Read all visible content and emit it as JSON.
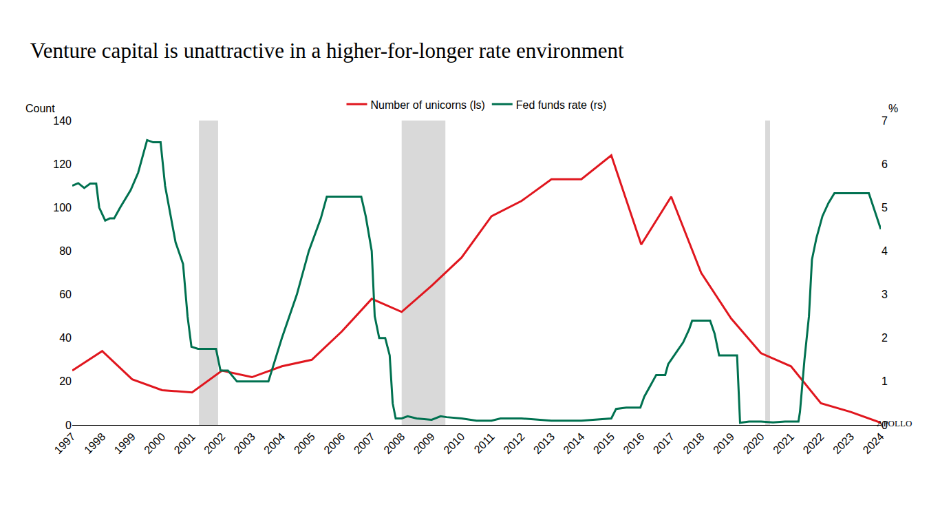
{
  "chart_data": {
    "type": "line",
    "title": "Venture capital is unattractive in a higher-for-longer rate environment",
    "logo": "APOLLO",
    "y_label": "Count",
    "y2_label": "%",
    "xlim": [
      1997,
      2024
    ],
    "xticks": [
      1997,
      1998,
      1999,
      2000,
      2001,
      2002,
      2003,
      2004,
      2005,
      2006,
      2007,
      2008,
      2009,
      2010,
      2011,
      2012,
      2013,
      2014,
      2015,
      2016,
      2017,
      2018,
      2019,
      2020,
      2021,
      2022,
      2023,
      2024
    ],
    "ylim": [
      0,
      140
    ],
    "yticks": [
      0,
      20,
      40,
      60,
      80,
      100,
      120,
      140
    ],
    "y2lim": [
      0,
      7
    ],
    "y2ticks": [
      0,
      1,
      2,
      3,
      4,
      5,
      6,
      7
    ],
    "grid": false,
    "legend": "top",
    "shaded_periods": [
      [
        2001.23,
        2001.87
      ],
      [
        2008.0,
        2009.46
      ],
      [
        2020.14,
        2020.3
      ]
    ],
    "series": [
      {
        "name": "Number of unicorns (ls)",
        "color": "#e0161e",
        "axis": "y",
        "x": [
          1997,
          1998,
          1999,
          2000,
          2001,
          2002,
          2003,
          2004,
          2005,
          2006,
          2007,
          2008,
          2009,
          2010,
          2011,
          2012,
          2013,
          2014,
          2015,
          2016,
          2017,
          2018,
          2019,
          2020,
          2021,
          2022,
          2023,
          2024
        ],
        "values": [
          25,
          34,
          21,
          16,
          15,
          25,
          22,
          27,
          30,
          43,
          58,
          52,
          64,
          77,
          96,
          103,
          113,
          113,
          124,
          83,
          105,
          70,
          49,
          33,
          27,
          10,
          6,
          1
        ]
      },
      {
        "name": "Fed funds rate (rs)",
        "color": "#007150",
        "axis": "y2",
        "x": [
          1997.0,
          1997.2,
          1997.4,
          1997.6,
          1997.8,
          1997.9,
          1998.1,
          1998.25,
          1998.4,
          1998.6,
          1998.95,
          1999.2,
          1999.4,
          1999.5,
          1999.7,
          1999.95,
          2000.1,
          2000.45,
          2000.7,
          2000.85,
          2000.98,
          2001.2,
          2001.5,
          2001.8,
          2001.95,
          2002.2,
          2002.5,
          2002.8,
          2003.2,
          2003.55,
          2004.0,
          2004.5,
          2004.9,
          2005.3,
          2005.5,
          2006.0,
          2006.65,
          2006.8,
          2007.0,
          2007.1,
          2007.25,
          2007.45,
          2007.6,
          2007.7,
          2007.8,
          2008.0,
          2008.2,
          2008.5,
          2009.0,
          2009.3,
          2009.5,
          2010.0,
          2010.5,
          2011.0,
          2011.3,
          2012.0,
          2012.5,
          2013.0,
          2014.0,
          2014.5,
          2015.0,
          2015.16,
          2015.5,
          2015.97,
          2016.1,
          2016.3,
          2016.5,
          2016.8,
          2016.9,
          2017.2,
          2017.4,
          2017.6,
          2017.7,
          2018.3,
          2018.45,
          2018.6,
          2019.2,
          2019.3,
          2019.6,
          2020.0,
          2020.4,
          2020.8,
          2021.25,
          2021.3,
          2021.45,
          2021.6,
          2021.7,
          2021.85,
          2022.05,
          2022.25,
          2022.45,
          2023.6,
          2023.8,
          2024.0
        ],
        "values": [
          5.5,
          5.56,
          5.45,
          5.55,
          5.55,
          5.0,
          4.7,
          4.75,
          4.75,
          5.0,
          5.4,
          5.8,
          6.3,
          6.55,
          6.5,
          6.5,
          5.5,
          4.2,
          3.7,
          2.5,
          1.8,
          1.75,
          1.75,
          1.75,
          1.25,
          1.25,
          1.0,
          1.0,
          1.0,
          1.0,
          2.0,
          3.0,
          4.0,
          4.75,
          5.25,
          5.25,
          5.25,
          4.8,
          4.0,
          2.5,
          2.0,
          2.0,
          1.6,
          0.5,
          0.15,
          0.15,
          0.2,
          0.15,
          0.12,
          0.2,
          0.18,
          0.15,
          0.1,
          0.1,
          0.15,
          0.15,
          0.12,
          0.1,
          0.1,
          0.12,
          0.15,
          0.37,
          0.4,
          0.4,
          0.65,
          0.9,
          1.15,
          1.15,
          1.4,
          1.7,
          1.9,
          2.2,
          2.4,
          2.4,
          2.1,
          1.6,
          1.6,
          0.05,
          0.08,
          0.08,
          0.06,
          0.08,
          0.08,
          0.3,
          1.5,
          2.5,
          3.8,
          4.3,
          4.8,
          5.1,
          5.33,
          5.33,
          4.9,
          4.5
        ]
      }
    ]
  }
}
